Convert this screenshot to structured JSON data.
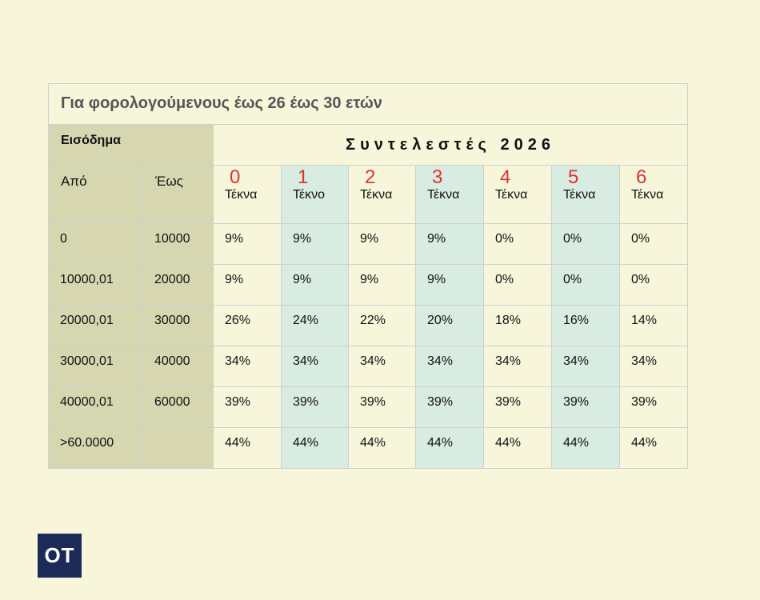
{
  "title": "Για φορολογούμενους έως 26 έως 30 ετών",
  "income_label": "Εισόδημα",
  "coefficients_label": "Συντελεστές 2026",
  "range_headers": {
    "from": "Από",
    "to": "Έως"
  },
  "children_columns": [
    {
      "number": "0",
      "label": "Τέκνα"
    },
    {
      "number": "1",
      "label": "Τέκνο"
    },
    {
      "number": "2",
      "label": "Τέκνα"
    },
    {
      "number": "3",
      "label": "Τέκνα"
    },
    {
      "number": "4",
      "label": "Τέκνα"
    },
    {
      "number": "5",
      "label": "Τέκνα"
    },
    {
      "number": "6",
      "label": "Τέκνα"
    }
  ],
  "rows": [
    {
      "from": "0",
      "to": "10000",
      "rates": [
        "9%",
        "9%",
        "9%",
        "9%",
        "0%",
        "0%",
        "0%"
      ]
    },
    {
      "from": "10000,01",
      "to": "20000",
      "rates": [
        "9%",
        "9%",
        "9%",
        "9%",
        "0%",
        "0%",
        "0%"
      ]
    },
    {
      "from": "20000,01",
      "to": "30000",
      "rates": [
        "26%",
        "24%",
        "22%",
        "20%",
        "18%",
        "16%",
        "14%"
      ]
    },
    {
      "from": "30000,01",
      "to": "40000",
      "rates": [
        "34%",
        "34%",
        "34%",
        "34%",
        "34%",
        "34%",
        "34%"
      ]
    },
    {
      "from": "40000,01",
      "to": "60000",
      "rates": [
        "39%",
        "39%",
        "39%",
        "39%",
        "39%",
        "39%",
        "39%"
      ]
    },
    {
      "from": ">60.0000",
      "to": "",
      "rates": [
        "44%",
        "44%",
        "44%",
        "44%",
        "44%",
        "44%",
        "44%"
      ]
    }
  ],
  "logo_text": "OT",
  "colors": {
    "background": "#f7f6da",
    "income_column": "#d6d6b0",
    "mint_column": "#d8ece1",
    "child_number": "#e03131",
    "logo_bg": "#1b2a57"
  }
}
